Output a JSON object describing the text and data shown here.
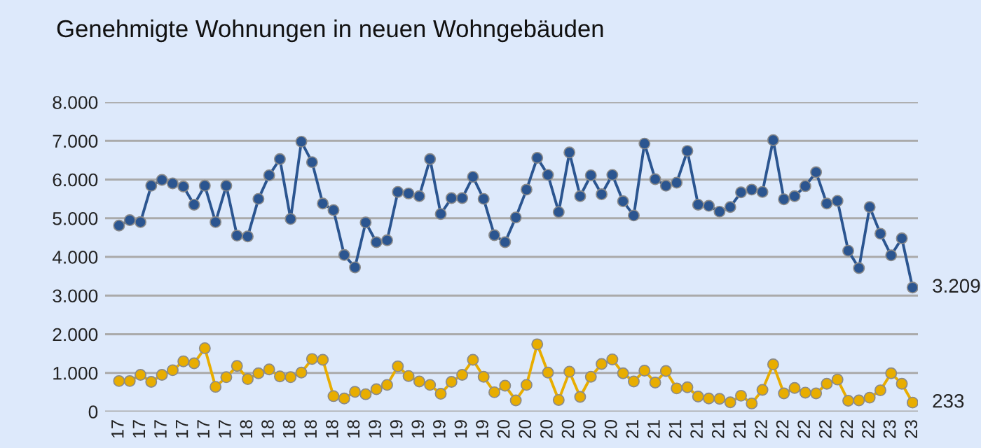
{
  "chart_data": {
    "type": "line",
    "title": "Genehmigte Wohnungen in neuen Wohngebäuden",
    "categories": [
      "17",
      null,
      "17",
      null,
      "17",
      null,
      "17",
      null,
      "17",
      null,
      "17",
      null,
      "18",
      null,
      "18",
      null,
      "18",
      null,
      "18",
      null,
      "18",
      null,
      "18",
      null,
      "19",
      null,
      "19",
      null,
      "19",
      null,
      "19",
      null,
      "19",
      null,
      "19",
      null,
      "20",
      null,
      "20",
      null,
      "20",
      null,
      "20",
      null,
      "20",
      null,
      "20",
      null,
      "21",
      null,
      "21",
      null,
      "21",
      null,
      "21",
      null,
      "21",
      null,
      "21",
      null,
      "22",
      null,
      "22",
      null,
      "22",
      null,
      "22",
      null,
      "22",
      null,
      "22",
      null,
      "23",
      null,
      "23"
    ],
    "series": [
      {
        "color": "#2b5590",
        "values": [
          4810,
          4950,
          4900,
          5840,
          5990,
          5900,
          5820,
          5350,
          5840,
          4900,
          5840,
          4550,
          4530,
          5500,
          6110,
          6530,
          4980,
          6980,
          6450,
          5380,
          5210,
          4050,
          3730,
          4890,
          4380,
          4430,
          5680,
          5640,
          5570,
          6530,
          5110,
          5520,
          5520,
          6070,
          5500,
          4560,
          4380,
          5020,
          5740,
          6560,
          6120,
          5160,
          6700,
          5570,
          6110,
          5620,
          6120,
          5440,
          5070,
          6930,
          6010,
          5840,
          5920,
          6740,
          5350,
          5320,
          5170,
          5290,
          5670,
          5740,
          5680,
          7020,
          5490,
          5570,
          5830,
          6190,
          5380,
          5450,
          4160,
          3710,
          5290,
          4600,
          4040,
          4480,
          3209
        ],
        "value_labels": [
          null,
          null,
          null,
          null,
          null,
          null,
          null,
          null,
          null,
          null,
          null,
          null,
          null,
          null,
          null,
          null,
          null,
          null,
          null,
          null,
          null,
          null,
          null,
          null,
          null,
          null,
          null,
          null,
          null,
          null,
          null,
          null,
          null,
          null,
          null,
          null,
          null,
          null,
          null,
          null,
          null,
          null,
          null,
          null,
          null,
          null,
          null,
          null,
          null,
          null,
          null,
          null,
          null,
          null,
          null,
          null,
          null,
          null,
          null,
          null,
          null,
          null,
          null,
          null,
          null,
          null,
          null,
          null,
          null,
          null,
          null,
          null,
          null,
          null,
          "3.209"
        ]
      },
      {
        "color": "#e8ad00",
        "values": [
          790,
          790,
          950,
          770,
          950,
          1070,
          1300,
          1250,
          1640,
          640,
          890,
          1180,
          840,
          990,
          1090,
          910,
          890,
          1010,
          1360,
          1340,
          400,
          340,
          510,
          450,
          580,
          690,
          1170,
          920,
          780,
          690,
          460,
          770,
          950,
          1340,
          900,
          500,
          670,
          290,
          690,
          1740,
          1010,
          300,
          1030,
          380,
          900,
          1230,
          1350,
          990,
          780,
          1060,
          750,
          1050,
          600,
          630,
          390,
          340,
          330,
          240,
          410,
          210,
          560,
          1220,
          470,
          610,
          490,
          470,
          720,
          830,
          280,
          290,
          360,
          550,
          990,
          720,
          233
        ],
        "value_labels": [
          null,
          null,
          null,
          null,
          null,
          null,
          null,
          null,
          null,
          null,
          null,
          null,
          null,
          null,
          null,
          null,
          null,
          null,
          null,
          null,
          null,
          null,
          null,
          null,
          null,
          null,
          null,
          null,
          null,
          null,
          null,
          null,
          null,
          null,
          null,
          null,
          null,
          null,
          null,
          null,
          null,
          null,
          null,
          null,
          null,
          null,
          null,
          null,
          null,
          null,
          null,
          null,
          null,
          null,
          null,
          null,
          null,
          null,
          null,
          null,
          null,
          null,
          null,
          null,
          null,
          null,
          null,
          null,
          null,
          null,
          null,
          null,
          null,
          null,
          "233"
        ]
      }
    ],
    "ylim": [
      0,
      8000
    ],
    "yticks": [
      0,
      {
        "value": 1000,
        "label": "1.000"
      },
      {
        "value": 2000,
        "label": "2.000"
      },
      {
        "value": 3000,
        "label": "3.000"
      },
      {
        "value": 4000,
        "label": "4.000"
      },
      {
        "value": 5000,
        "label": "5.000"
      },
      {
        "value": 6000,
        "label": "6.000"
      },
      {
        "value": 7000,
        "label": "7.000"
      },
      {
        "value": 8000,
        "label": "8.000"
      }
    ],
    "grid": "y",
    "legend": false,
    "marker": "circle",
    "line_style": "solid"
  }
}
